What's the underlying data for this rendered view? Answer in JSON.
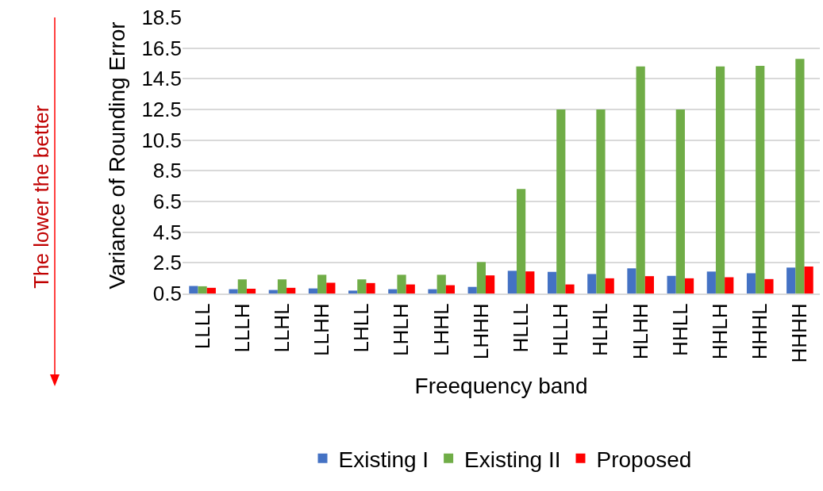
{
  "chart_data": {
    "type": "bar",
    "xlabel": "Freequency band",
    "ylabel": "Variance of Rounding Error",
    "annotations": [
      "The lower the better"
    ],
    "categories": [
      "LLLL",
      "LLLH",
      "LLHL",
      "LLHH",
      "LHLL",
      "LHLH",
      "LHHL",
      "LHHH",
      "HLLL",
      "HLLH",
      "HLHL",
      "HLHH",
      "HHLL",
      "HHLH",
      "HHHL",
      "HHHH"
    ],
    "series": [
      {
        "name": "Existing I",
        "color": "#4472c4",
        "values": [
          0.99,
          0.78,
          0.73,
          0.83,
          0.69,
          0.78,
          0.78,
          0.93,
          1.98,
          1.91,
          1.77,
          2.14,
          1.65,
          1.93,
          1.82,
          2.19
        ]
      },
      {
        "name": "Existing II",
        "color": "#70ad47",
        "values": [
          0.97,
          1.42,
          1.42,
          1.72,
          1.42,
          1.72,
          1.72,
          2.55,
          7.32,
          12.5,
          12.5,
          15.3,
          12.5,
          15.3,
          15.35,
          15.8
        ]
      },
      {
        "name": "Proposed",
        "color": "#ff0000",
        "values": [
          0.87,
          0.81,
          0.87,
          1.2,
          1.18,
          1.09,
          1.04,
          1.68,
          1.94,
          1.09,
          1.49,
          1.63,
          1.49,
          1.56,
          1.44,
          2.26
        ]
      }
    ],
    "ylim": [
      0.5,
      18.5
    ],
    "yticks": [
      0.5,
      2.5,
      4.5,
      6.5,
      8.5,
      10.5,
      12.5,
      14.5,
      16.5,
      18.5
    ],
    "grid": "y",
    "legend": "bottom"
  }
}
